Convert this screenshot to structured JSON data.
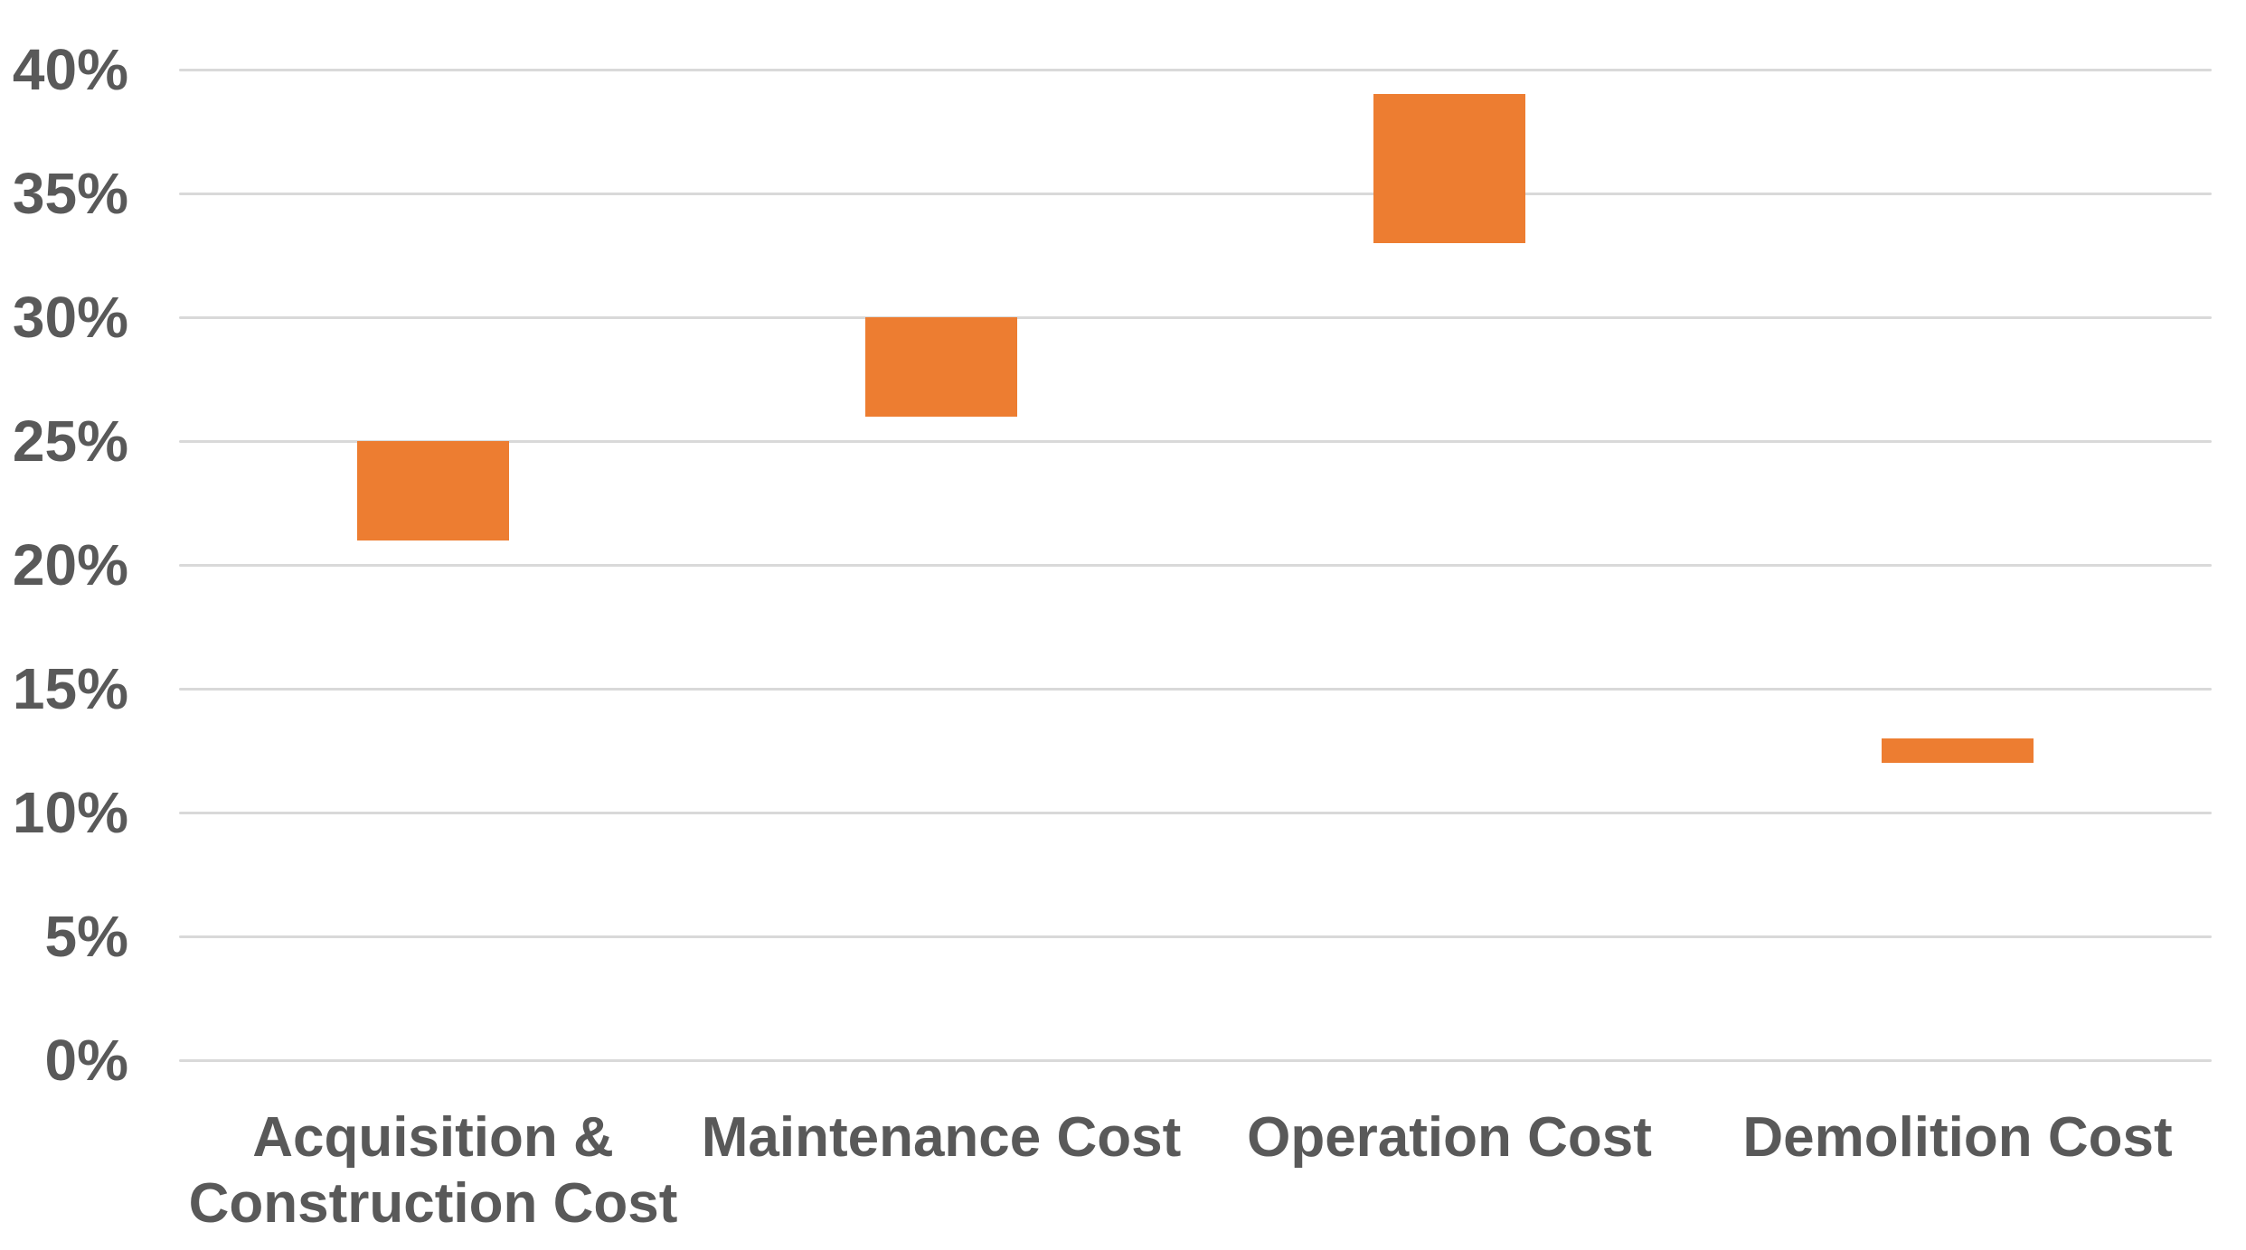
{
  "chart_data": {
    "type": "bar",
    "subtype": "floating-range-column",
    "title": "",
    "xlabel": "",
    "ylabel": "",
    "categories": [
      "Acquisition & Construction Cost",
      "Maintenance Cost",
      "Operation Cost",
      "Demolition Cost"
    ],
    "bars": [
      {
        "category": "Acquisition & Construction Cost",
        "low_pct": 21,
        "high_pct": 25
      },
      {
        "category": "Maintenance Cost",
        "low_pct": 26,
        "high_pct": 30
      },
      {
        "category": "Operation Cost",
        "low_pct": 33,
        "high_pct": 39
      },
      {
        "category": "Demolition Cost",
        "low_pct": 12,
        "high_pct": 13
      }
    ],
    "ylim": [
      0,
      40
    ],
    "ytick_step": 5,
    "ytick_labels": [
      "0%",
      "5%",
      "10%",
      "15%",
      "20%",
      "25%",
      "30%",
      "35%",
      "40%"
    ],
    "grid": true,
    "legend": false,
    "colors": {
      "bar_fill": "#ED7D31",
      "gridline": "#D9D9D9",
      "tick_label": "#595959",
      "background": "#FFFFFF"
    }
  }
}
